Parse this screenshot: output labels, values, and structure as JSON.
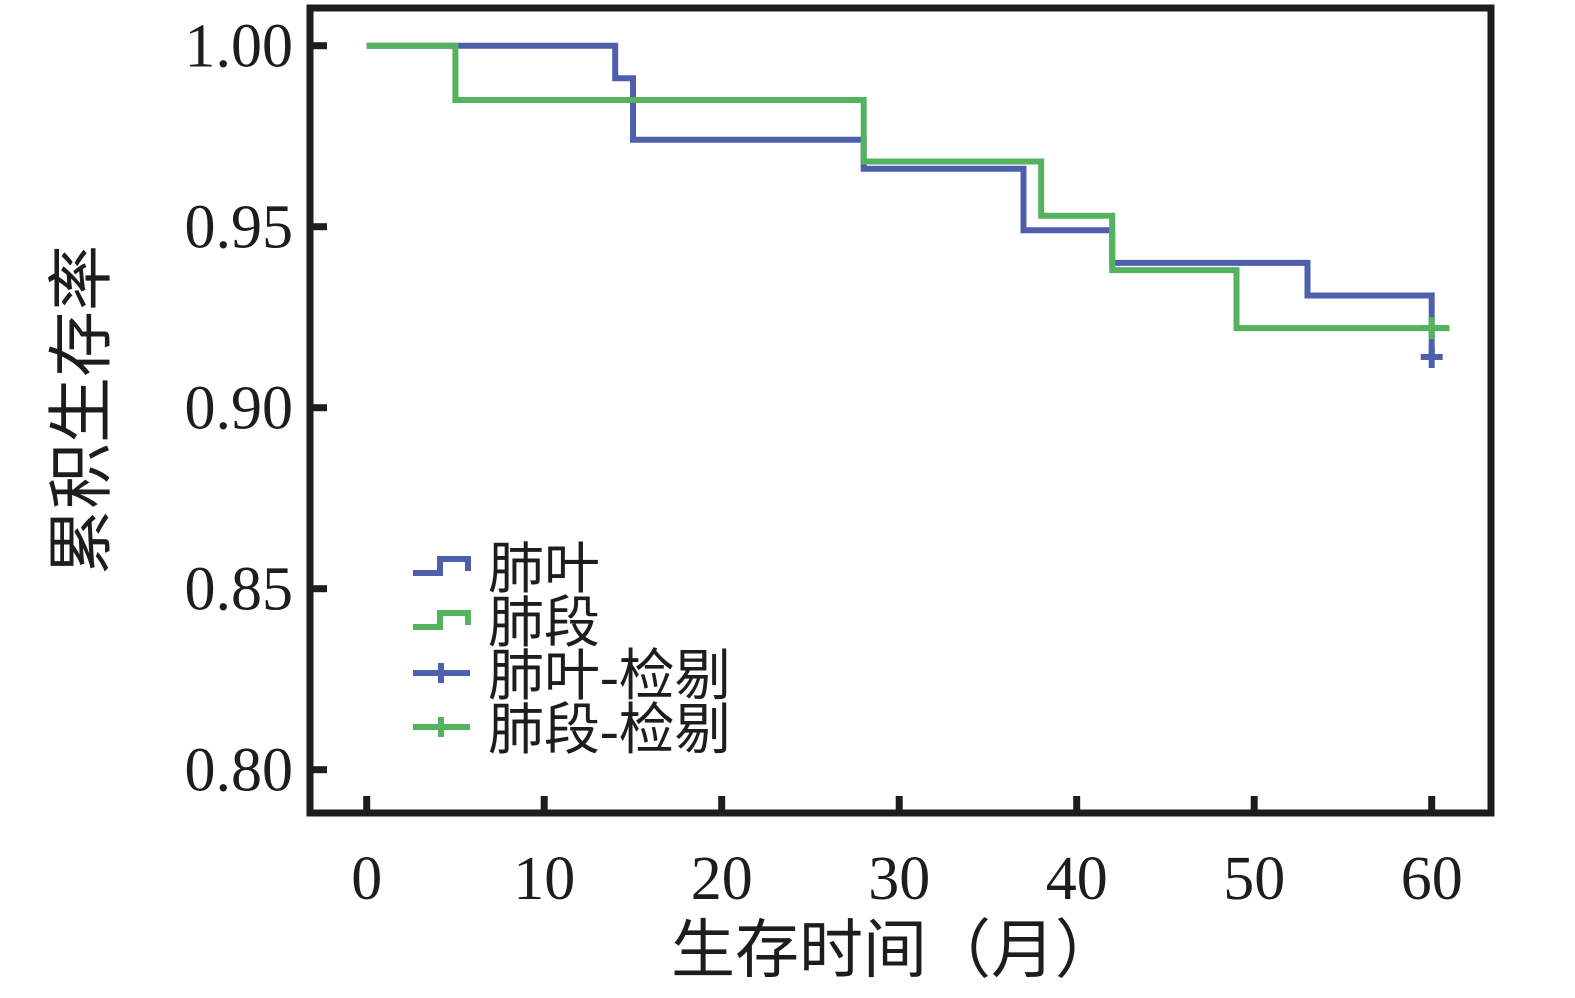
{
  "figure": {
    "background": "#ffffff",
    "frame_color": "#1d1d1d"
  },
  "chart_data": {
    "type": "line",
    "subtype": "kaplan-meier-step-survival",
    "title": "",
    "xlabel": "生存时间（月）",
    "ylabel": "累积生存率",
    "xlim": [
      -3.2,
      63.3
    ],
    "ylim": [
      0.788,
      1.01
    ],
    "grid": false,
    "legend_position": "inside-lower-left",
    "x_ticks": [
      {
        "value": 0,
        "label": "0"
      },
      {
        "value": 10,
        "label": "10"
      },
      {
        "value": 20,
        "label": "20"
      },
      {
        "value": 30,
        "label": "30"
      },
      {
        "value": 40,
        "label": "40"
      },
      {
        "value": 50,
        "label": "50"
      },
      {
        "value": 60,
        "label": "60"
      }
    ],
    "y_ticks": [
      {
        "value": 1.0,
        "label": "1.00"
      },
      {
        "value": 0.95,
        "label": "0.95"
      },
      {
        "value": 0.9,
        "label": "0.90"
      },
      {
        "value": 0.85,
        "label": "0.85"
      },
      {
        "value": 0.8,
        "label": "0.80"
      }
    ],
    "series": [
      {
        "name": "肺叶",
        "color": "#4e5fae",
        "points": [
          [
            0,
            1.0
          ],
          [
            14,
            1.0
          ],
          [
            14,
            0.991
          ],
          [
            15,
            0.991
          ],
          [
            15,
            0.974
          ],
          [
            28,
            0.974
          ],
          [
            28,
            0.966
          ],
          [
            37,
            0.966
          ],
          [
            37,
            0.949
          ],
          [
            42,
            0.949
          ],
          [
            42,
            0.94
          ],
          [
            53,
            0.94
          ],
          [
            53,
            0.931
          ],
          [
            60,
            0.931
          ],
          [
            60,
            0.914
          ]
        ],
        "censor_marks": [
          [
            60,
            0.914
          ]
        ]
      },
      {
        "name": "肺段",
        "color": "#55b25e",
        "points": [
          [
            0,
            1.0
          ],
          [
            5,
            1.0
          ],
          [
            5,
            0.985
          ],
          [
            28,
            0.985
          ],
          [
            28,
            0.968
          ],
          [
            38,
            0.968
          ],
          [
            38,
            0.953
          ],
          [
            42,
            0.953
          ],
          [
            42,
            0.938
          ],
          [
            49,
            0.938
          ],
          [
            49,
            0.922
          ],
          [
            61,
            0.922
          ]
        ],
        "censor_marks": [
          [
            60,
            0.922
          ]
        ]
      }
    ],
    "legend": [
      {
        "label": "肺叶",
        "symbol": "step",
        "color": "#4e5fae"
      },
      {
        "label": "肺段",
        "symbol": "step",
        "color": "#55b25e"
      },
      {
        "label": "肺叶-检剔",
        "symbol": "plus",
        "color": "#4e5fae"
      },
      {
        "label": "肺段-检剔",
        "symbol": "plus",
        "color": "#55b25e"
      }
    ]
  }
}
